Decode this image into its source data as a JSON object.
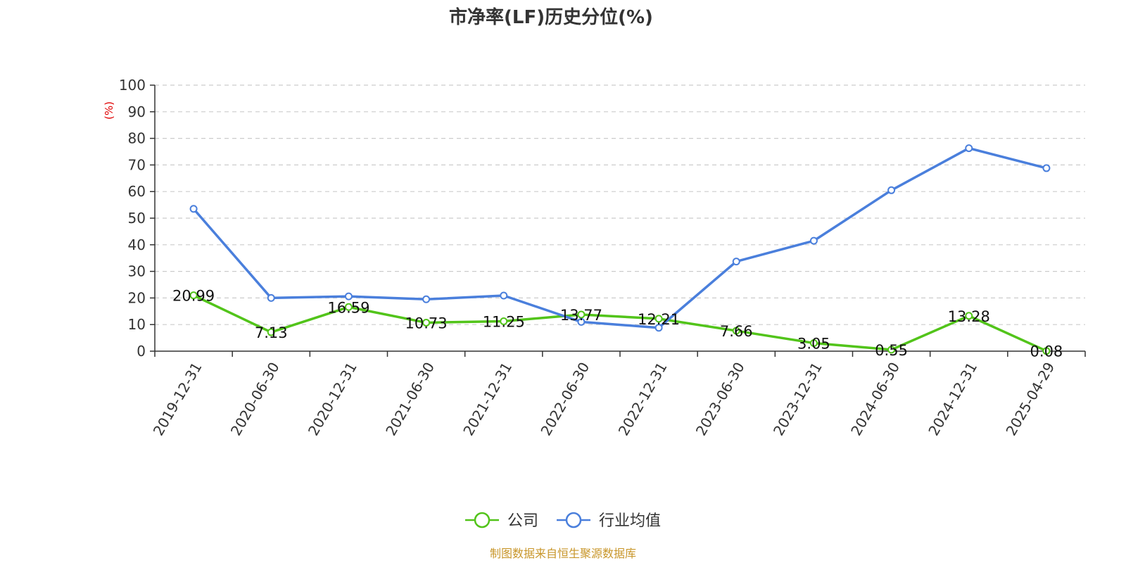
{
  "chart_data": {
    "type": "line",
    "title": "市净率(LF)历史分位(%)",
    "ylabel": "(%)",
    "ylim": [
      0,
      100
    ],
    "yticks": [
      0,
      10,
      20,
      30,
      40,
      50,
      60,
      70,
      80,
      90,
      100
    ],
    "categories": [
      "2019-12-31",
      "2020-06-30",
      "2020-12-31",
      "2021-06-30",
      "2021-12-31",
      "2022-06-30",
      "2022-12-31",
      "2023-06-30",
      "2023-12-31",
      "2024-06-30",
      "2024-12-31",
      "2025-04-29"
    ],
    "series": [
      {
        "name": "公司",
        "color": "#52c41a",
        "values": [
          20.99,
          7.13,
          16.59,
          10.73,
          11.25,
          13.77,
          12.21,
          7.66,
          3.05,
          0.55,
          13.28,
          0.08
        ],
        "labels": [
          "20.99",
          "7.13",
          "16.59",
          "10.73",
          "11.25",
          "13.77",
          "12.21",
          "7.66",
          "3.05",
          "0.55",
          "13.28",
          "0.08"
        ],
        "show_labels": true
      },
      {
        "name": "行业均值",
        "color": "#4a7fdc",
        "values": [
          53.5,
          20.0,
          20.6,
          19.5,
          20.9,
          11.0,
          8.8,
          33.7,
          41.5,
          60.5,
          76.3,
          68.8
        ],
        "show_labels": false
      }
    ],
    "grid": true,
    "legend": "bottom-center",
    "source": "制图数据来自恒生聚源数据库"
  }
}
